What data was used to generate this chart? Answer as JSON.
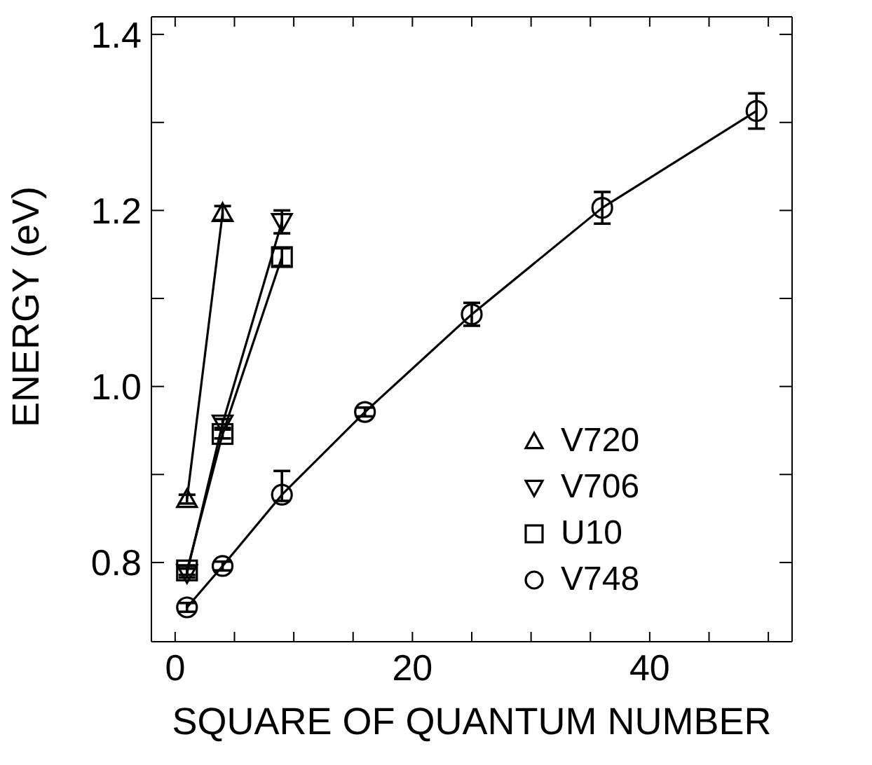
{
  "chart_data": {
    "type": "line",
    "xlabel": "SQUARE OF QUANTUM NUMBER",
    "ylabel": "ENERGY (eV)",
    "xlim": [
      -2,
      52
    ],
    "xticks": [
      0,
      {
        "value": 5,
        "label": null
      },
      {
        "value": 10,
        "label": null
      },
      {
        "value": 15,
        "label": null
      },
      20,
      {
        "value": 25,
        "label": null
      },
      {
        "value": 30,
        "label": null
      },
      {
        "value": 35,
        "label": null
      },
      40,
      {
        "value": 45,
        "label": null
      },
      {
        "value": 50,
        "label": null
      }
    ],
    "ylim": [
      0.71,
      1.42
    ],
    "yticks": [
      0.8,
      {
        "value": 0.9,
        "label": null
      },
      {
        "value": 1.0,
        "label": "1.0"
      },
      {
        "value": 1.1,
        "label": null
      },
      1.2,
      {
        "value": 1.3,
        "label": null
      },
      1.4
    ],
    "legend": "bottom right",
    "line_style": "solid",
    "series": [
      {
        "name": "V720",
        "color": "#000000",
        "marker": "triangle",
        "x": [
          1,
          4
        ],
        "values": [
          0.872,
          1.197
        ],
        "errors": [
          0.005,
          0.008
        ]
      },
      {
        "name": "V706",
        "color": "#000000",
        "marker": "triangle-down",
        "x": [
          1,
          4,
          9
        ],
        "values": [
          0.788,
          0.958,
          1.187
        ],
        "errors": [
          0.005,
          0.005,
          0.013
        ]
      },
      {
        "name": "U10",
        "color": "#000000",
        "marker": "square",
        "x": [
          1,
          4,
          9
        ],
        "values": [
          0.791,
          0.946,
          1.147
        ],
        "errors": [
          0.005,
          0.005,
          0.01
        ]
      },
      {
        "name": "V748",
        "color": "#000000",
        "marker": "circle",
        "x": [
          1,
          4,
          9,
          16,
          25,
          36,
          49
        ],
        "values": [
          0.749,
          0.796,
          0.877,
          0.971,
          1.082,
          1.203,
          1.313
        ],
        "errors": [
          0.005,
          0.005,
          [
            0.87,
            0.904
          ],
          0.005,
          0.013,
          0.018,
          0.02
        ]
      }
    ]
  }
}
